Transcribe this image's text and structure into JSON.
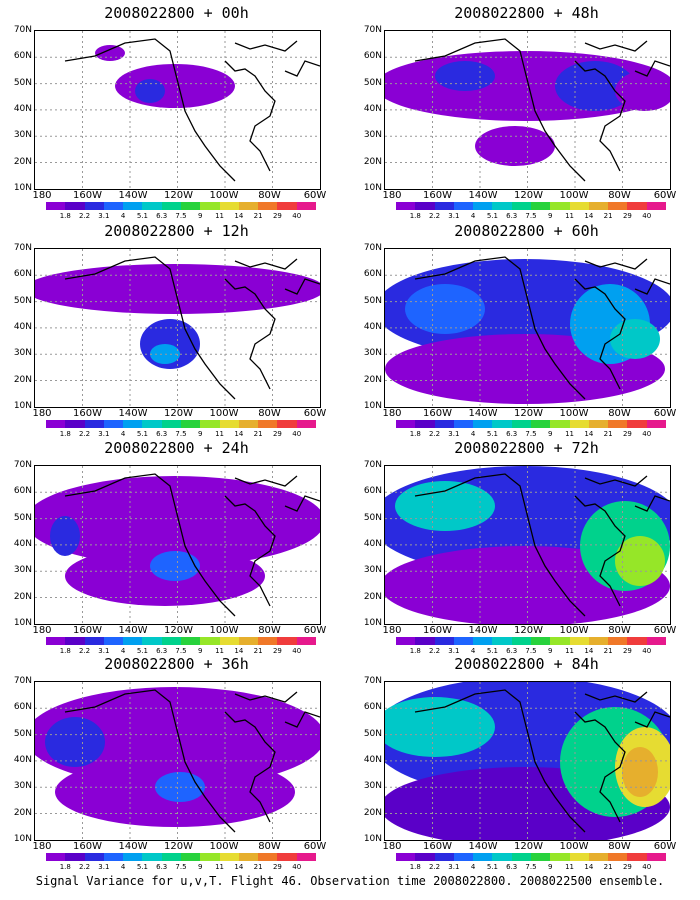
{
  "panels": [
    {
      "title": "2008022800 + 00h"
    },
    {
      "title": "2008022800 + 48h"
    },
    {
      "title": "2008022800 + 12h"
    },
    {
      "title": "2008022800 + 60h"
    },
    {
      "title": "2008022800 + 24h"
    },
    {
      "title": "2008022800 + 72h"
    },
    {
      "title": "2008022800 + 36h"
    },
    {
      "title": "2008022800 + 84h"
    }
  ],
  "lat_labels": [
    "70N",
    "60N",
    "50N",
    "40N",
    "30N",
    "20N",
    "10N"
  ],
  "lon_labels": [
    "180",
    "160W",
    "140W",
    "120W",
    "100W",
    "80W",
    "60W"
  ],
  "colorbar": {
    "labels": [
      "1.8",
      "2.2",
      "3.1",
      "4",
      "5.1",
      "6.3",
      "7.5",
      "9",
      "11",
      "14",
      "21",
      "29",
      "40"
    ],
    "colors": [
      "#8a00d4",
      "#5a00c8",
      "#2a2ae0",
      "#1e64ff",
      "#00a0f0",
      "#00c8c8",
      "#00d28c",
      "#28d23c",
      "#96e628",
      "#e6dc32",
      "#e6af2d",
      "#f07828",
      "#f03c3c",
      "#e6198c"
    ]
  },
  "caption": "Signal Variance for u,v,T. Flight 46. Observation time 2008022800. 2008022500 ensemble."
}
